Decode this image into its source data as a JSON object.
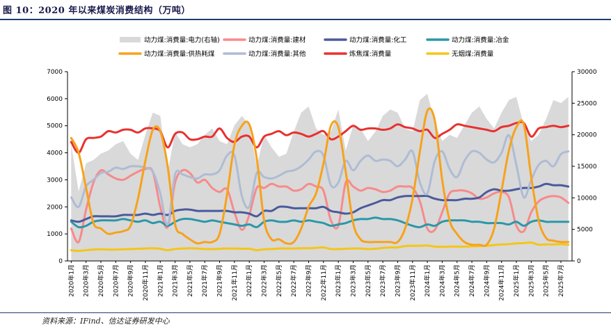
{
  "figure_title": "图 10：2020 年以来煤炭消费结构（万吨）",
  "source": "资料来源：IFind、信达证券研发中心",
  "colors": {
    "power": "#d9d9d9",
    "building": "#f88a8a",
    "chemical": "#4a5a9c",
    "metallurgy": "#2b97a8",
    "heating": "#f7a21b",
    "other": "#aebcd4",
    "coking": "#e8312f",
    "anthracite": "#f5c518"
  },
  "chart_data": {
    "type": "line",
    "title": "",
    "xlabel": "",
    "ylabel_left": "",
    "ylabel_right": "",
    "ylim_left": [
      0,
      7000
    ],
    "yticks_left": [
      "0",
      "1000",
      "2000",
      "3000",
      "4000",
      "5000",
      "6000",
      "7000"
    ],
    "ylim_right": [
      0,
      30000
    ],
    "yticks_right": [
      "0",
      "5000",
      "10000",
      "15000",
      "20000",
      "25000",
      "30000"
    ],
    "grid": false,
    "legend_position": "top",
    "x": [
      "2020年1月",
      "2020年2月",
      "2020年3月",
      "2020年4月",
      "2020年5月",
      "2020年6月",
      "2020年7月",
      "2020年8月",
      "2020年9月",
      "2020年10月",
      "2020年11月",
      "2020年12月",
      "2021年1月",
      "2021年2月",
      "2021年3月",
      "2021年4月",
      "2021年5月",
      "2021年6月",
      "2021年7月",
      "2021年8月",
      "2021年9月",
      "2021年10月",
      "2021年11月",
      "2021年12月",
      "2022年1月",
      "2022年2月",
      "2022年3月",
      "2022年4月",
      "2022年5月",
      "2022年6月",
      "2022年7月",
      "2022年8月",
      "2022年9月",
      "2022年10月",
      "2022年11月",
      "2022年12月",
      "2023年1月",
      "2023年2月",
      "2023年3月",
      "2023年4月",
      "2023年5月",
      "2023年6月",
      "2023年7月",
      "2023年8月",
      "2023年9月",
      "2023年10月",
      "2023年11月",
      "2023年12月",
      "2024年1月",
      "2024年2月",
      "2024年3月",
      "2024年4月",
      "2024年5月",
      "2024年6月",
      "2024年7月",
      "2024年8月",
      "2024年9月",
      "2024年10月",
      "2024年11月",
      "2024年12月",
      "2025年1月",
      "2025年2月",
      "2025年3月",
      "2025年4月",
      "2025年5月",
      "2025年6月",
      "2025年7月",
      "2025年8月"
    ],
    "x_tick_labels": [
      "2020年1月",
      "2020年3月",
      "2020年5月",
      "2020年7月",
      "2020年9月",
      "2020年11月",
      "2021年1月",
      "2021年3月",
      "2021年5月",
      "2021年7月",
      "2021年9月",
      "2021年11月",
      "2022年1月",
      "2022年3月",
      "2022年5月",
      "2022年7月",
      "2022年9月",
      "2022年11月",
      "2023年1月",
      "2023年3月",
      "2023年5月",
      "2023年7月",
      "2023年9月",
      "2023年11月",
      "2024年1月",
      "2024年3月",
      "2024年5月",
      "2024年7月",
      "2024年9月",
      "2024年11月",
      "2025年1月",
      "2025年3月",
      "2025年5月",
      "2025年7月"
    ],
    "series": [
      {
        "key": "power",
        "name": "动力煤:消费量:电力(右轴)",
        "type": "area",
        "axis": "right",
        "values": [
          18500,
          11000,
          15500,
          16000,
          17000,
          17500,
          18500,
          19000,
          17000,
          16000,
          20000,
          23500,
          23000,
          14000,
          20500,
          18500,
          18000,
          18500,
          20000,
          21000,
          19000,
          18500,
          21500,
          23000,
          21500,
          15000,
          20000,
          18000,
          16500,
          17000,
          20500,
          23500,
          24500,
          21000,
          20000,
          20500,
          24000,
          17500,
          21500,
          21000,
          19000,
          20500,
          23000,
          24000,
          23500,
          21000,
          20500,
          25500,
          26500,
          22000,
          19000,
          20000,
          19500,
          21500,
          23500,
          24500,
          22500,
          21000,
          23500,
          25500,
          26000,
          21500,
          19000,
          20000,
          22500,
          25500,
          25000,
          26000
        ]
      },
      {
        "key": "building",
        "name": "动力煤:消费量:建材",
        "type": "line",
        "axis": "left",
        "values": [
          1200,
          700,
          1900,
          2900,
          3350,
          3200,
          3050,
          3000,
          3150,
          3300,
          3400,
          3300,
          2000,
          1250,
          2900,
          3350,
          3250,
          2900,
          3000,
          2700,
          2550,
          2650,
          1800,
          1150,
          1700,
          2700,
          2700,
          2850,
          2750,
          2750,
          2600,
          2650,
          2850,
          2750,
          2600,
          1500,
          1300,
          2900,
          2750,
          2600,
          2700,
          2650,
          2550,
          2600,
          2750,
          2750,
          2700,
          2200,
          1200,
          1150,
          1800,
          2500,
          2600,
          2600,
          2500,
          2300,
          2350,
          2500,
          2550,
          2350,
          1300,
          1100,
          1800,
          2200,
          2350,
          2400,
          2350,
          2150
        ]
      },
      {
        "key": "chemical",
        "name": "动力煤:消费量:化工",
        "type": "line",
        "axis": "left",
        "values": [
          1500,
          1450,
          1550,
          1650,
          1650,
          1650,
          1650,
          1700,
          1700,
          1700,
          1750,
          1700,
          1750,
          1700,
          1850,
          1900,
          1900,
          1850,
          1850,
          1850,
          1850,
          1850,
          1800,
          1800,
          1750,
          1650,
          1850,
          1850,
          2000,
          2000,
          1950,
          1950,
          1950,
          1950,
          2000,
          1850,
          1800,
          1750,
          1800,
          1950,
          2050,
          2150,
          2250,
          2250,
          2350,
          2400,
          2400,
          2400,
          2400,
          2300,
          2250,
          2250,
          2250,
          2300,
          2300,
          2350,
          2550,
          2650,
          2600,
          2600,
          2650,
          2700,
          2700,
          2750,
          2850,
          2800,
          2800,
          2750
        ]
      },
      {
        "key": "metallurgy",
        "name": "动力煤:消费量:冶金",
        "type": "line",
        "axis": "left",
        "values": [
          1450,
          1250,
          1300,
          1450,
          1500,
          1500,
          1500,
          1550,
          1500,
          1450,
          1500,
          1400,
          1450,
          1300,
          1450,
          1550,
          1550,
          1500,
          1450,
          1500,
          1450,
          1400,
          1350,
          1300,
          1350,
          1250,
          1450,
          1500,
          1450,
          1450,
          1500,
          1450,
          1500,
          1450,
          1400,
          1300,
          1350,
          1400,
          1500,
          1550,
          1550,
          1600,
          1550,
          1550,
          1500,
          1400,
          1300,
          1250,
          1350,
          1300,
          1450,
          1500,
          1500,
          1500,
          1450,
          1450,
          1400,
          1400,
          1400,
          1350,
          1450,
          1300,
          1450,
          1500,
          1450,
          1450,
          1450,
          1450
        ]
      },
      {
        "key": "heating",
        "name": "动力煤:消费量:供热耗煤",
        "type": "line",
        "axis": "left",
        "values": [
          4550,
          4000,
          2700,
          1400,
          1200,
          1000,
          1050,
          1100,
          1300,
          2300,
          3700,
          4850,
          4800,
          3500,
          1350,
          1000,
          800,
          650,
          700,
          700,
          1000,
          2450,
          4300,
          5000,
          5050,
          3800,
          1500,
          800,
          800,
          650,
          700,
          1200,
          2000,
          2500,
          3600,
          5000,
          4950,
          3300,
          1400,
          800,
          700,
          700,
          700,
          700,
          700,
          1200,
          2300,
          4050,
          5550,
          5200,
          3000,
          1500,
          1000,
          700,
          600,
          600,
          600,
          1200,
          2600,
          4100,
          4950,
          5050,
          3100,
          1500,
          850,
          750,
          700,
          700
        ]
      },
      {
        "key": "other",
        "name": "动力煤:消费量:其他",
        "type": "line",
        "axis": "left",
        "values": [
          2350,
          2000,
          2750,
          3000,
          3250,
          3300,
          3450,
          3400,
          3500,
          3500,
          3450,
          3300,
          2500,
          1350,
          3200,
          3200,
          3100,
          3050,
          3200,
          3200,
          3350,
          3900,
          3900,
          2400,
          2000,
          3250,
          3100,
          3050,
          3150,
          3300,
          3350,
          3500,
          3750,
          4050,
          3900,
          2800,
          2900,
          3700,
          3350,
          3700,
          3900,
          3700,
          3750,
          3700,
          3500,
          3750,
          4050,
          2900,
          2500,
          3700,
          4050,
          3400,
          3100,
          3700,
          4050,
          4000,
          3750,
          3650,
          4000,
          4650,
          3550,
          2350,
          3000,
          3550,
          3700,
          3500,
          3950,
          4050
        ]
      },
      {
        "key": "coking",
        "name": "炼焦煤:消费量",
        "type": "line",
        "axis": "left",
        "values": [
          4400,
          4000,
          4500,
          4550,
          4600,
          4800,
          4750,
          4850,
          4850,
          4750,
          4900,
          4900,
          4800,
          4200,
          4700,
          4750,
          4500,
          4500,
          4600,
          4600,
          4900,
          4550,
          4400,
          4600,
          4600,
          4200,
          4600,
          4700,
          4800,
          4650,
          4750,
          4700,
          4600,
          4700,
          4800,
          4500,
          4600,
          4800,
          5000,
          4850,
          4900,
          4900,
          4850,
          4900,
          5050,
          4950,
          4900,
          4800,
          4850,
          4550,
          4700,
          4850,
          5050,
          5000,
          4950,
          4900,
          4850,
          4800,
          4950,
          5000,
          5100,
          5100,
          4600,
          4900,
          4950,
          5000,
          4950,
          5000
        ]
      },
      {
        "key": "anthracite",
        "name": "无烟煤:消费量",
        "type": "line",
        "axis": "left",
        "values": [
          400,
          370,
          400,
          420,
          430,
          420,
          420,
          430,
          440,
          450,
          460,
          470,
          450,
          400,
          440,
          460,
          470,
          460,
          440,
          440,
          450,
          460,
          460,
          450,
          450,
          400,
          430,
          440,
          460,
          460,
          460,
          470,
          470,
          480,
          500,
          440,
          440,
          450,
          460,
          460,
          440,
          450,
          480,
          500,
          500,
          550,
          560,
          560,
          570,
          530,
          520,
          530,
          530,
          530,
          540,
          550,
          560,
          590,
          610,
          620,
          650,
          660,
          680,
          600,
          610,
          610,
          620,
          600
        ]
      }
    ]
  }
}
